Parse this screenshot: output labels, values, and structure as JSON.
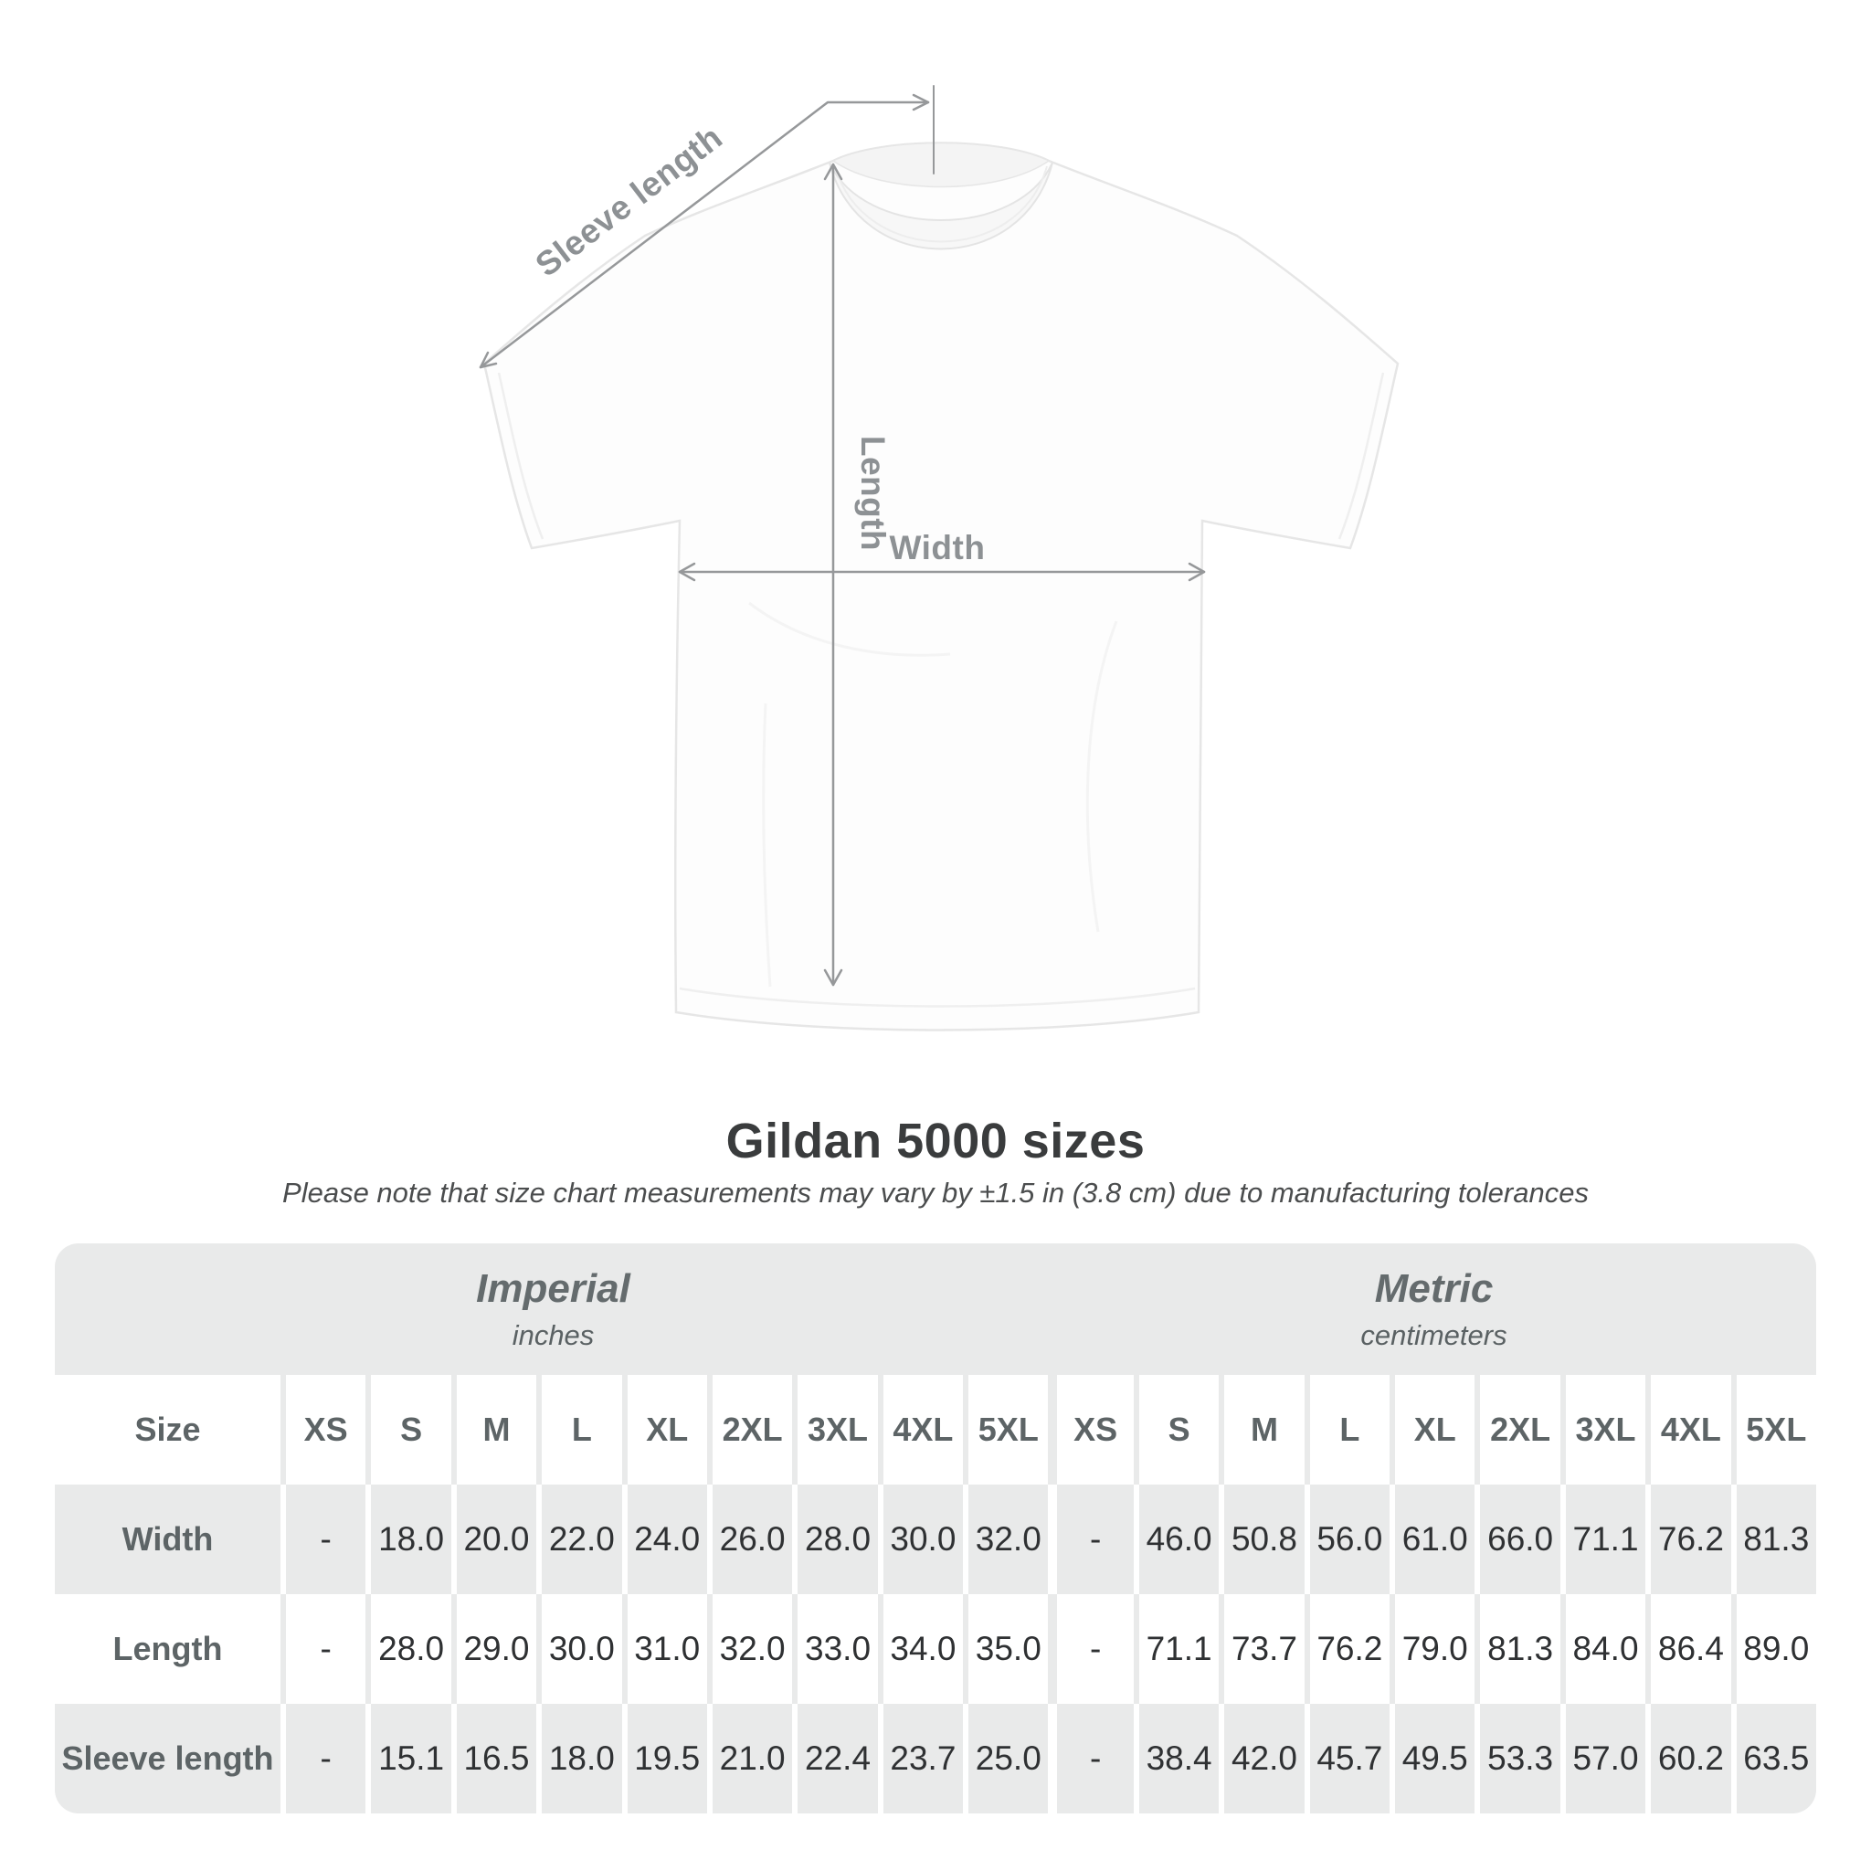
{
  "title": "Gildan 5000 sizes",
  "note": "Please note that size chart measurements may vary by ±1.5 in (3.8 cm) due to manufacturing tolerances",
  "diagram": {
    "labels": {
      "sleeve_length": "Sleeve length",
      "length": "Length",
      "width": "Width"
    },
    "line_color": "#96989a",
    "label_color": "#8d9194"
  },
  "table": {
    "size_label": "Size",
    "unit_groups": [
      {
        "name": "Imperial",
        "unit": "inches"
      },
      {
        "name": "Metric",
        "unit": "centimeters"
      }
    ],
    "sizes": [
      "XS",
      "S",
      "M",
      "L",
      "XL",
      "2XL",
      "3XL",
      "4XL",
      "5XL"
    ],
    "rows": [
      {
        "label": "Width",
        "imperial": [
          "-",
          "18.0",
          "20.0",
          "22.0",
          "24.0",
          "26.0",
          "28.0",
          "30.0",
          "32.0"
        ],
        "metric": [
          "-",
          "46.0",
          "50.8",
          "56.0",
          "61.0",
          "66.0",
          "71.1",
          "76.2",
          "81.3"
        ]
      },
      {
        "label": "Length",
        "imperial": [
          "-",
          "28.0",
          "29.0",
          "30.0",
          "31.0",
          "32.0",
          "33.0",
          "34.0",
          "35.0"
        ],
        "metric": [
          "-",
          "71.1",
          "73.7",
          "76.2",
          "79.0",
          "81.3",
          "84.0",
          "86.4",
          "89.0"
        ]
      },
      {
        "label": "Sleeve length",
        "imperial": [
          "-",
          "15.1",
          "16.5",
          "18.0",
          "19.5",
          "21.0",
          "22.4",
          "23.7",
          "25.0"
        ],
        "metric": [
          "-",
          "38.4",
          "42.0",
          "45.7",
          "49.5",
          "53.3",
          "57.0",
          "60.2",
          "63.5"
        ]
      }
    ]
  },
  "chart_data": {
    "type": "table",
    "title": "Gildan 5000 sizes",
    "note": "Measurements may vary by ±1.5 in (3.8 cm) due to manufacturing tolerances",
    "unit_groups": [
      "Imperial (inches)",
      "Metric (centimeters)"
    ],
    "columns": [
      "Size",
      "XS",
      "S",
      "M",
      "L",
      "XL",
      "2XL",
      "3XL",
      "4XL",
      "5XL"
    ],
    "rows": [
      {
        "label": "Width",
        "imperial": [
          null,
          18.0,
          20.0,
          22.0,
          24.0,
          26.0,
          28.0,
          30.0,
          32.0
        ],
        "metric": [
          null,
          46.0,
          50.8,
          56.0,
          61.0,
          66.0,
          71.1,
          76.2,
          81.3
        ]
      },
      {
        "label": "Length",
        "imperial": [
          null,
          28.0,
          29.0,
          30.0,
          31.0,
          32.0,
          33.0,
          34.0,
          35.0
        ],
        "metric": [
          null,
          71.1,
          73.7,
          76.2,
          79.0,
          81.3,
          84.0,
          86.4,
          89.0
        ]
      },
      {
        "label": "Sleeve length",
        "imperial": [
          null,
          15.1,
          16.5,
          18.0,
          19.5,
          21.0,
          22.4,
          23.7,
          25.0
        ],
        "metric": [
          null,
          38.4,
          42.0,
          45.7,
          49.5,
          53.3,
          57.0,
          60.2,
          63.5
        ]
      }
    ]
  },
  "colors": {
    "table_band": "#e9eaea",
    "row_alt": "#e9eaea",
    "header_text": "#5d6466",
    "value_text": "#2f3133",
    "annotation": "#96989a"
  }
}
